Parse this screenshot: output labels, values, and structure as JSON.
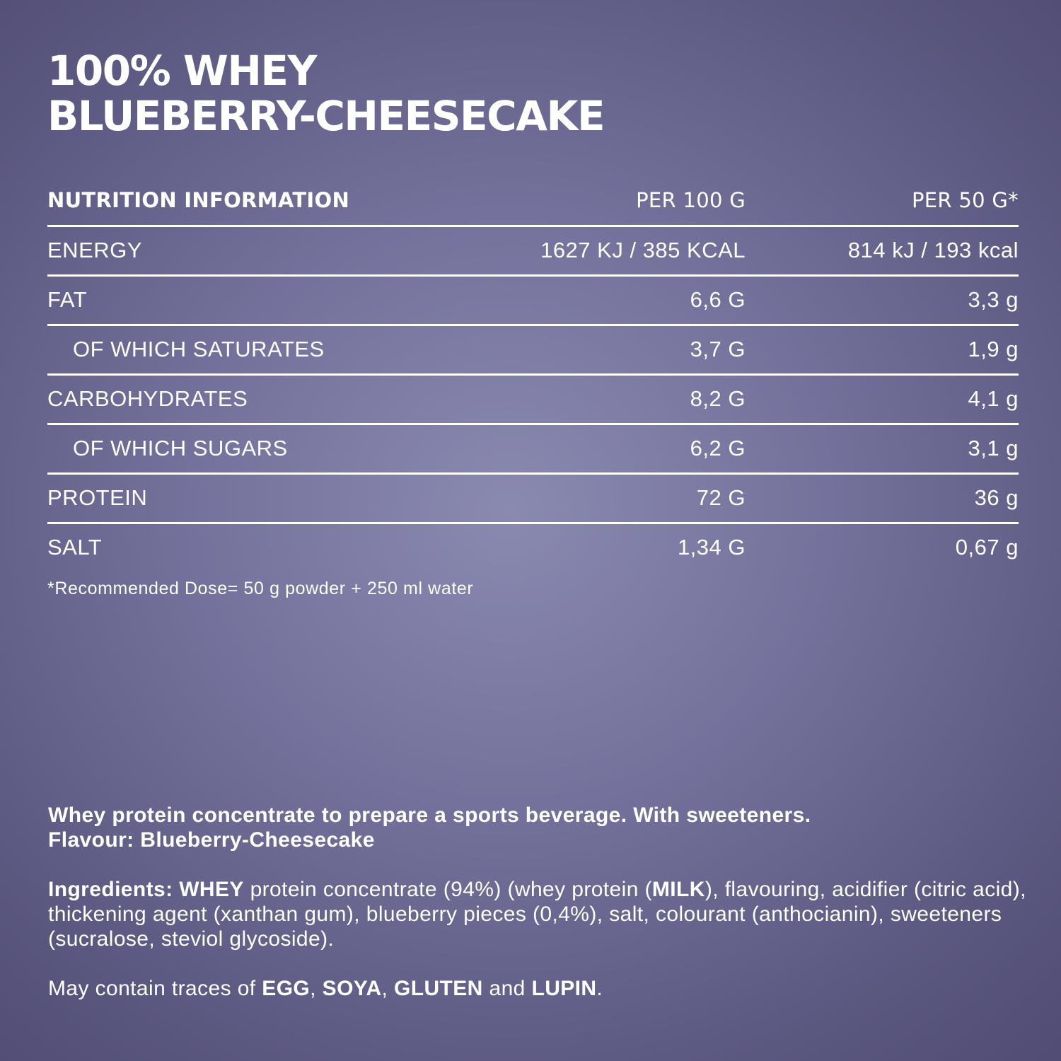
{
  "title": {
    "line1": "100% WHEY",
    "line2": "BLUEBERRY-CHEESECAKE"
  },
  "table": {
    "header": {
      "label": "NUTRITION INFORMATION",
      "per100": "PER 100 G",
      "per50": "PER 50 G*"
    },
    "rows": [
      {
        "label": "ENERGY",
        "per100": "1627 KJ / 385 KCAL",
        "per50": "814 kJ / 193 kcal"
      },
      {
        "label": "FAT",
        "per100": "6,6 G",
        "per50": "3,3 g"
      },
      {
        "label": "OF WHICH SATURATES",
        "per100": "3,7 G",
        "per50": "1,9 g"
      },
      {
        "label": "CARBOHYDRATES",
        "per100": "8,2 G",
        "per50": "4,1 g"
      },
      {
        "label": "OF WHICH SUGARS",
        "per100": "6,2 G",
        "per50": "3,1 g"
      },
      {
        "label": "PROTEIN",
        "per100": "72 G",
        "per50": "36 g"
      },
      {
        "label": "SALT",
        "per100": "1,34 G",
        "per50": "0,67 g"
      }
    ]
  },
  "footnote": "*Recommended Dose= 50 g powder + 250 ml water",
  "description": {
    "line1": "Whey protein concentrate to prepare a sports beverage. With sweeteners.",
    "line2": "Flavour: Blueberry-Cheesecake"
  },
  "ingredients": {
    "label": "Ingredients: ",
    "allergen1": "WHEY",
    "text1": " protein concentrate (94%) (whey protein (",
    "allergen2": "MILK",
    "text2": "), flavouring, acidifier (citric acid), thickening agent (xanthan gum), blueberry pieces (0,4%), salt, colourant (anthocianin), sweeteners (sucralose, steviol glycoside)."
  },
  "traces": {
    "prefix": "May contain traces of ",
    "a1": "EGG",
    "sep1": ", ",
    "a2": "SOYA",
    "sep2": ", ",
    "a3": "GLUTEN",
    "sep3": " and ",
    "a4": "LUPIN",
    "suffix": "."
  }
}
